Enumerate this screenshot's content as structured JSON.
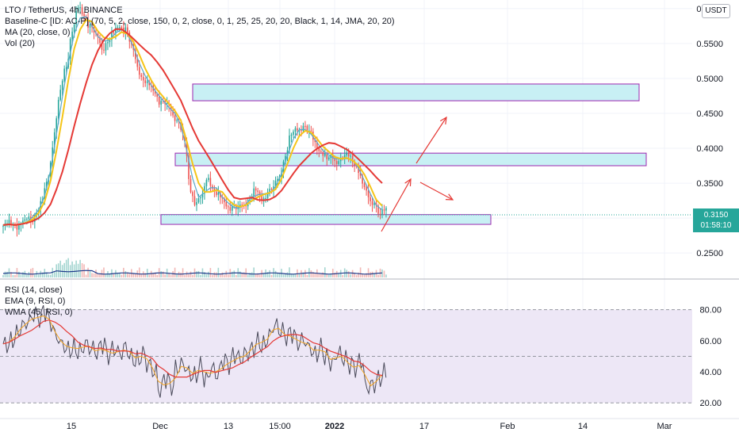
{
  "header": {
    "symbol": "LTO / TetherUS, 4h, BINANCE",
    "currency_button": "USDT"
  },
  "legend": {
    "baseline": "Baseline-C [ID: AC-P] (70, 5, 2, close, 150, 0, 2, close, 0, 1, 25, 25, 20, 20, Black, 1, 14, JMA, 20, 20)",
    "ma": "MA (20, close, 0)",
    "vol": "Vol (20)",
    "rsi": "RSI (14, close)",
    "ema": "EMA (9, RSI, 0)",
    "wma": "WMA (45, RSI, 0)"
  },
  "last_price": {
    "value": "0.3150",
    "countdown": "01:58:10"
  },
  "colors": {
    "bull": "#26a69a",
    "bear": "#ef5350",
    "ma_red": "#e53935",
    "ma_yellow": "#f5c518",
    "ma_blue": "#5aa9c9",
    "box_fill": "#c8f0f4",
    "box_stroke": "#9c27b0",
    "rsi_bg": "#ede7f6",
    "rsi_line": "#7e57c2",
    "arrow": "#e53935",
    "volume": "#b0bec5"
  },
  "chart_data": [
    {
      "type": "candlestick",
      "title": "LTO / TetherUS, 4h, BINANCE",
      "y_axis_ticks": [
        "0.6000",
        "0.5500",
        "0.5000",
        "0.4500",
        "0.4000",
        "0.3500",
        "0.3000",
        "0.2500"
      ],
      "ylim": [
        0.215,
        0.61
      ],
      "x_axis_ticks": [
        "15",
        "Dec",
        "13",
        "15:00",
        "2022",
        "17",
        "Feb",
        "14",
        "Mar"
      ],
      "last_price": 0.315,
      "close_series": [
        0.29,
        0.292,
        0.288,
        0.295,
        0.3,
        0.31,
        0.325,
        0.36,
        0.42,
        0.48,
        0.52,
        0.57,
        0.6,
        0.59,
        0.575,
        0.56,
        0.545,
        0.555,
        0.565,
        0.575,
        0.57,
        0.545,
        0.52,
        0.5,
        0.49,
        0.48,
        0.465,
        0.46,
        0.45,
        0.44,
        0.41,
        0.34,
        0.32,
        0.33,
        0.36,
        0.34,
        0.33,
        0.32,
        0.315,
        0.31,
        0.32,
        0.33,
        0.34,
        0.33,
        0.335,
        0.34,
        0.36,
        0.39,
        0.42,
        0.43,
        0.43,
        0.42,
        0.41,
        0.395,
        0.385,
        0.39,
        0.38,
        0.385,
        0.39,
        0.375,
        0.35,
        0.335,
        0.32,
        0.3,
        0.315
      ],
      "zones": [
        {
          "from": 0.468,
          "to": 0.492
        },
        {
          "from": 0.375,
          "to": 0.393
        },
        {
          "from": 0.291,
          "to": 0.305
        }
      ]
    },
    {
      "type": "line",
      "title": "RSI (14, close)",
      "y_axis_ticks": [
        "80.00",
        "60.00",
        "40.00",
        "20.00"
      ],
      "ylim": [
        15,
        88
      ],
      "bands": [
        20,
        50,
        80
      ],
      "rsi_series": [
        58,
        60,
        65,
        70,
        72,
        76,
        74,
        78,
        70,
        62,
        58,
        55,
        56,
        54,
        58,
        55,
        52,
        57,
        50,
        54,
        52,
        56,
        50,
        48,
        52,
        45,
        40,
        28,
        35,
        30,
        42,
        45,
        40,
        38,
        44,
        36,
        42,
        38,
        46,
        44,
        50,
        48,
        52,
        55,
        60,
        58,
        64,
        70,
        66,
        62,
        64,
        58,
        60,
        56,
        52,
        56,
        50,
        46,
        52,
        48,
        44,
        42,
        46,
        30,
        32,
        36,
        40
      ]
    }
  ]
}
